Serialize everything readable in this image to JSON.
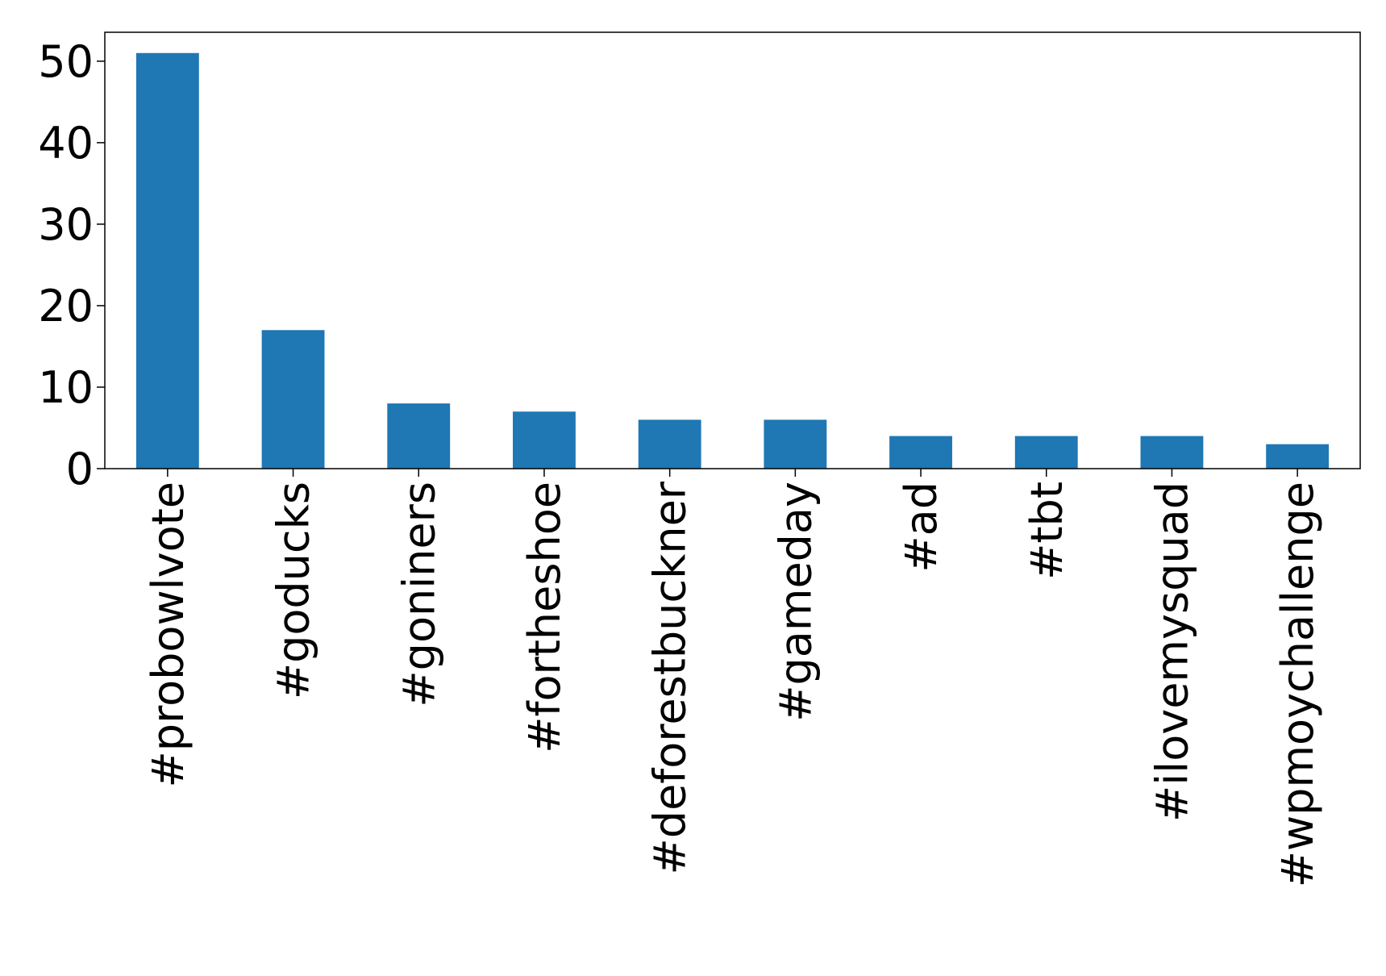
{
  "chart_data": {
    "type": "bar",
    "categories": [
      "#probowlvote",
      "#goducks",
      "#goniners",
      "#fortheshoe",
      "#deforestbuckner",
      "#gameday",
      "#ad",
      "#tbt",
      "#ilovemysquad",
      "#wpmoychallenge"
    ],
    "values": [
      51,
      17,
      8,
      7,
      6,
      6,
      4,
      4,
      4,
      3
    ],
    "color": "#1f77b4",
    "ylim": [
      0,
      53.55
    ],
    "yticks": [
      0,
      10,
      20,
      30,
      40,
      50
    ],
    "grid": false
  }
}
